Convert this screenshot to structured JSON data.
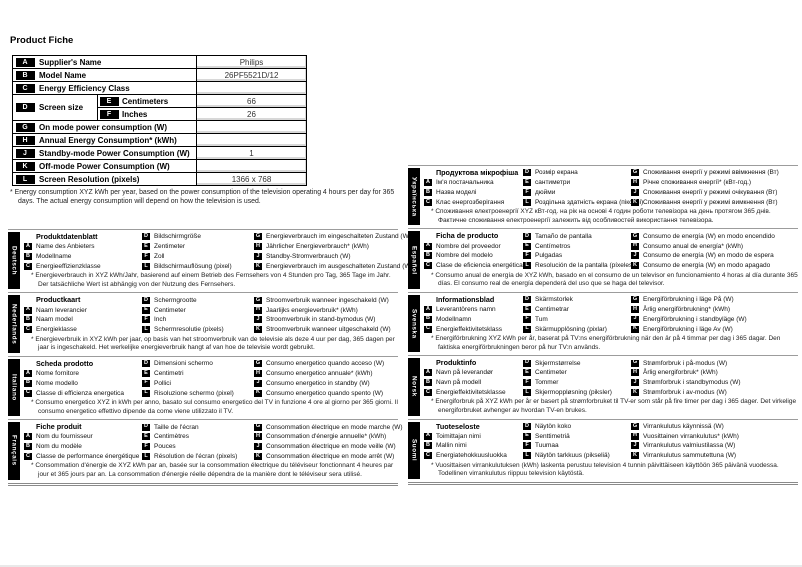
{
  "page": {
    "title": "Product Fiche"
  },
  "letters": {
    "a": "A",
    "b": "B",
    "c": "C",
    "d": "D",
    "e": "E",
    "f": "F",
    "g": "G",
    "h": "H",
    "j": "J",
    "k": "K",
    "l": "L"
  },
  "table": {
    "rows": {
      "a": {
        "label": "Supplier's Name",
        "value": "Philips"
      },
      "b": {
        "label": "Model Name",
        "value": "26PF5521D/12"
      },
      "c": {
        "label": "Energy Efficiency Class",
        "value": ""
      },
      "d": {
        "label": "Screen size",
        "e": {
          "label": "Centimeters",
          "value": "66"
        },
        "f": {
          "label": "Inches",
          "value": "26"
        }
      },
      "g": {
        "label": "On mode power consumption (W)",
        "value": ""
      },
      "h": {
        "label": "Annual Energy Consumption* (kWh)",
        "value": ""
      },
      "j": {
        "label": "Standby-mode Power Consumption (W)",
        "value": "1"
      },
      "k": {
        "label": "Off-mode Power Consumption (W)",
        "value": ""
      },
      "l": {
        "label": "Screen Resolution (pixels)",
        "value": "1366 x 768"
      }
    },
    "footnote": "* Energy consumption XYZ kWh per year, based on the power consumption of the television operating 4 hours per day for 365 days. The actual energy consumption will depend on how the television is used."
  },
  "sections_left": [
    {
      "lang": "Deutsch",
      "title": "Produktdatenblatt",
      "a": "Name des Anbieters",
      "b": "Modellname",
      "c": "Energieeffizienzklasse",
      "d": "Bildschirmgröße",
      "e": "Zentimeter",
      "f": "Zoll",
      "l": "Bildschirmauflösung (pixel)",
      "g": "Energieverbrauch im eingeschalteten Zustand (W)",
      "h": "Jährlicher Energieverbrauch* (kWh)",
      "j": "Standby-Stromverbrauch (W)",
      "k": "Energieverbrauch im ausgeschalteten Zustand (W)",
      "note": "* Energieverbrauch in XYZ kWh/Jahr, basierend auf einem Betrieb des Fernsehers von 4 Stunden pro Tag, 365 Tage im Jahr. Der tatsächliche Wert ist abhängig von der Nutzung des Fernsehers."
    },
    {
      "lang": "Nederlands",
      "title": "Productkaart",
      "a": "Naam leverancier",
      "b": "Naam model",
      "c": "Energieklasse",
      "d": "Schermgrootte",
      "e": "Centimeter",
      "f": "Inch",
      "l": "Schermresolutie (pixels)",
      "g": "Stroomverbruik wanneer ingeschakeld (W)",
      "h": "Jaarlijks energieverbruik* (kWh)",
      "j": "Stroomverbruik in stand-bymodus (W)",
      "k": "Stroomverbruik wanneer uitgeschakeld (W)",
      "note": "* Energieverbruik in XYZ kWh per jaar, op basis van het stroomverbruik van de televisie als deze 4 uur per dag, 365 dagen per jaar is ingeschakeld. Het werkelijke energieverbruik hangt af van hoe de televisie wordt gebruikt."
    },
    {
      "lang": "Italiano",
      "title": "Scheda prodotto",
      "a": "Nome fornitore",
      "b": "Nome modello",
      "c": "Classe di efficienza energetica",
      "d": "Dimensioni schermo",
      "e": "Centimetri",
      "f": "Pollici",
      "l": "Risoluzione schermo (pixel)",
      "g": "Consumo energetico quando acceso (W)",
      "h": "Consumo energetico annuale* (kWh)",
      "j": "Consumo energetico in standby (W)",
      "k": "Consumo energetico quando spento (W)",
      "note": "* Consumo energetico XYZ in kWh per anno, basato sul consumo energetico del TV in funzione 4 ore al giorno per 365 giorni. Il consumo energetico effettivo dipende da come viene utilizzato il TV."
    },
    {
      "lang": "Français",
      "title": "Fiche produit",
      "a": "Nom du fournisseur",
      "b": "Nom du modèle",
      "c": "Classe de performance énergétique",
      "d": "Taille de l'écran",
      "e": "Centimètres",
      "f": "Pouces",
      "l": "Résolution de l'écran (pixels)",
      "g": "Consommation électrique en mode marche (W)",
      "h": "Consommation d'énergie annuelle* (kWh)",
      "j": "Consommation électrique en mode veille (W)",
      "k": "Consommation électrique en mode arrêt (W)",
      "note": "* Consommation d'énergie de XYZ kWh par an, basée sur la consommation électrique du téléviseur fonctionnant 4 heures par jour et 365 jours par an. La consommation d'énergie réelle dépendra de la manière dont le téléviseur sera utilisé."
    }
  ],
  "sections_right": [
    {
      "lang": "Українська",
      "title": "Продуктова мікрофіша",
      "a": "Ім'я постачальника",
      "b": "Назва моделі",
      "c": "Клас енергозберігання",
      "d": "Розмір екрана",
      "e": "сантиметри",
      "f": "дюйми",
      "l": "Роздільна здатність екрана (пікселі)",
      "g": "Споживання енергії у режимі ввімкнення (Вт)",
      "h": "Річне споживання енергії* (кВт-год.)",
      "j": "Споживання енергії у режимі очікування (Вт)",
      "k": "Споживання енергії у режимі вимкнення (Вт)",
      "note": "* Споживання електроенергії XYZ кВт-год. на рік на основі 4 годин роботи телевізора на день протягом 365 днів. Фактичне споживання електроенергії залежить від особливостей використання телевізора."
    },
    {
      "lang": "Español",
      "title": "Ficha de producto",
      "a": "Nombre del proveedor",
      "b": "Nombre del modelo",
      "c": "Clase de eficiencia energética",
      "d": "Tamaño de pantalla",
      "e": "Centímetros",
      "f": "Pulgadas",
      "l": "Resolución de la pantalla (píxeles)",
      "g": "Consumo de energía (W) en modo encendido",
      "h": "Consumo anual de energía* (kWh)",
      "j": "Consumo de energía (W) en modo de espera",
      "k": "Consumo de energía (W) en modo apagado",
      "note": "* Consumo anual de energía de XYZ kWh, basado en el consumo de un televisor en funcionamiento 4 horas al día durante 365 días. El consumo real de energía dependerá del uso que se haga del televisor."
    },
    {
      "lang": "Svenska",
      "title": "Informationsblad",
      "a": "Leverantörens namn",
      "b": "Modellnamn",
      "c": "Energieffektivitetsklass",
      "d": "Skärmstorlek",
      "e": "Centimetrar",
      "f": "Tum",
      "l": "Skärmupplösning (pixlar)",
      "g": "Energiförbrukning i läge På (W)",
      "h": "Årlig energiförbrukning* (kWh)",
      "j": "Energiförbrukning i standbyläge (W)",
      "k": "Energiförbrukning i läge Av (W)",
      "note": "* Energiförbrukning XYZ kWh per år, baserat på TV:ns energiförbrukning när den är på 4 timmar per dag i 365 dagar. Den faktiska energiförbrukningen beror på hur TV:n används."
    },
    {
      "lang": "Norsk",
      "title": "Produktinfo",
      "a": "Navn på leverandør",
      "b": "Navn på modell",
      "c": "Energieffektivitetsklasse",
      "d": "Skjermstørrelse",
      "e": "Centimeter",
      "f": "Tommer",
      "l": "Skjermoppløsning (piksler)",
      "g": "Strømforbruk i på-modus (W)",
      "h": "Årlig energiforbruk* (kWh)",
      "j": "Strømforbruk i standbymodus (W)",
      "k": "Strømforbruk i av-modus (W)",
      "note": "* Energiforbruk på XYZ kWh per år er basert på strømforbruket til TV-er som står på fire timer per dag i 365 dager. Det virkelige energiforbruket avhenger av hvordan TV-en brukes."
    },
    {
      "lang": "Suomi",
      "title": "Tuoteseloste",
      "a": "Toimittajan nimi",
      "b": "Mallin nimi",
      "c": "Energiatehokkuusluokka",
      "d": "Näytön koko",
      "e": "Senttimetriä",
      "f": "Tuumaa",
      "l": "Näytön tarkkuus (pikseliä)",
      "g": "Virrankulutus käynnissä (W)",
      "h": "Vuosittainen virrankulutus* (kWh)",
      "j": "Virrankulutus valmiustilassa (W)",
      "k": "Virrankulutus sammutettuna (W)",
      "note": "* Vuosittaisen virrankulutuksen (kWh) laskenta perustuu television 4 tunnin päivittäiseen käyttöön 365 päivänä vuodessa. Todellinen virrankulutus riippuu television käytöstä."
    }
  ]
}
